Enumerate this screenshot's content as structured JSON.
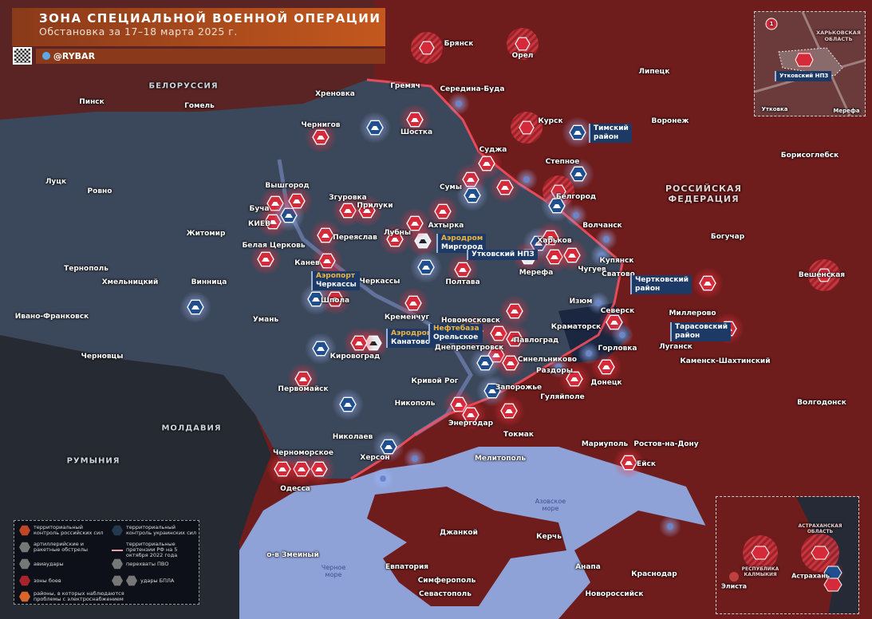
{
  "header": {
    "title": "ЗОНА СПЕЦИАЛЬНОЙ ВОЕННОЙ ОПЕРАЦИИ",
    "subtitle": "Обстановка за 17–18 марта 2025 г.",
    "brand": "@RYBAR"
  },
  "colors": {
    "russia": "#7a1f1f",
    "ukraine": "#3b475a",
    "sea": "#8fa2d8",
    "neutral": "#262a33",
    "marker_red": "#d42a3a",
    "marker_blue": "#1f4f8f",
    "label_box": "#1d3a66",
    "accent": "#f0b43c"
  },
  "countries": {
    "belarus": "БЕЛОРУССИЯ",
    "russia": "РОССИЙСКАЯ ФЕДЕРАЦИЯ",
    "moldova": "МОЛДАВИЯ",
    "romania": "РУМЫНИЯ"
  },
  "seas": {
    "black": "Черное море",
    "azov": "Азовское море"
  },
  "cities": [
    "Брянск",
    "Орел",
    "Липецк",
    "Гомель",
    "Пинск",
    "Хреновка",
    "Гремяч",
    "Середина-Буда",
    "Курск",
    "Воронеж",
    "Чернигов",
    "Шостка",
    "Суджа",
    "Борисоглебск",
    "Луцк",
    "Ровно",
    "Вышгород",
    "Згуровка",
    "Прилуки",
    "Сумы",
    "Степное",
    "Белгород",
    "Буча",
    "КИЕВ",
    "Житомир",
    "Лубны",
    "Ахтырка",
    "Переяслав",
    "Белая Церковь",
    "Харьков",
    "Волчанск",
    "Богучар",
    "Тернополь",
    "Канев",
    "Черкассы",
    "Полтава",
    "Мерефа",
    "Чугуев",
    "Купянск",
    "Сватово",
    "Хмельницкий",
    "Винница",
    "Вешенская",
    "Шпола",
    "Изюм",
    "Миллерово",
    "Ивано-Франковск",
    "Умань",
    "Кременчуг",
    "Северск",
    "Новомосковск",
    "Краматорск",
    "Павлоград",
    "Горловка",
    "Луганск",
    "Каменск-Шахтинский",
    "Черновцы",
    "Кировоград",
    "Днепропетровск",
    "Синельниково",
    "Раздоры",
    "Донецк",
    "Первомайск",
    "Кривой Рог",
    "Запорожье",
    "Гуляйполе",
    "Волгодонск",
    "Никополь",
    "Энергодар",
    "Токмак",
    "Ростов-на-Дону",
    "Николаев",
    "Мариуполь",
    "Черноморское",
    "Херсон",
    "Мелитополь",
    "Ейск",
    "Одесса",
    "о-в Змеиный",
    "Джанкой",
    "Керчь",
    "Евпатория",
    "Анапа",
    "Симферополь",
    "Краснодар",
    "Севастополь",
    "Новороссийск"
  ],
  "callouts": [
    {
      "top": "Аэродром",
      "bottom": "Миргород"
    },
    {
      "top": "",
      "bottom": "Утковский НПЗ"
    },
    {
      "top": "Аэропорт",
      "bottom": "Черкассы"
    },
    {
      "top": "Аэродром",
      "bottom": "Канатово"
    },
    {
      "top": "Нефтебаза",
      "bottom": "Орельское"
    },
    {
      "top": "Тимский",
      "bottom": "район"
    },
    {
      "top": "Чертковский",
      "bottom": "район"
    },
    {
      "top": "Тарасовский",
      "bottom": "район"
    }
  ],
  "inset_top": {
    "region": "ХАРЬКОВСКАЯ ОБЛАСТЬ",
    "target": "Утковский НПЗ",
    "towns": [
      "Утковка",
      "Мерефа"
    ],
    "badge": "1"
  },
  "inset_bottom": {
    "regions": [
      "АСТРАХАНСКАЯ ОБЛАСТЬ",
      "РЕСПУБЛИКА КАЛМЫКИЯ"
    ],
    "towns": [
      "Элиста",
      "Астрахань"
    ]
  },
  "legend": {
    "items": [
      {
        "icon": "russian-control-hex",
        "label": "территориальный контроль российских сил"
      },
      {
        "icon": "ukrainian-control-hex",
        "label": "территориальный контроль украинских сил"
      },
      {
        "icon": "artillery-icon",
        "label": "артиллерийские и ракетные обстрелы"
      },
      {
        "icon": "claims-line",
        "label": "территориальные претензии РФ на 5 октября 2022 года"
      },
      {
        "icon": "airstrike-icon",
        "label": "авиаудары"
      },
      {
        "icon": "air-defense-icon",
        "label": "перехваты ПВО"
      },
      {
        "icon": "lightning-icon",
        "label": "зоны боев"
      },
      {
        "icon": "drone-icon",
        "label": "удары БПЛА"
      },
      {
        "icon": "power-outage-icon",
        "label": "районы, в которых наблюдаются проблемы с электроснабжением"
      }
    ]
  }
}
